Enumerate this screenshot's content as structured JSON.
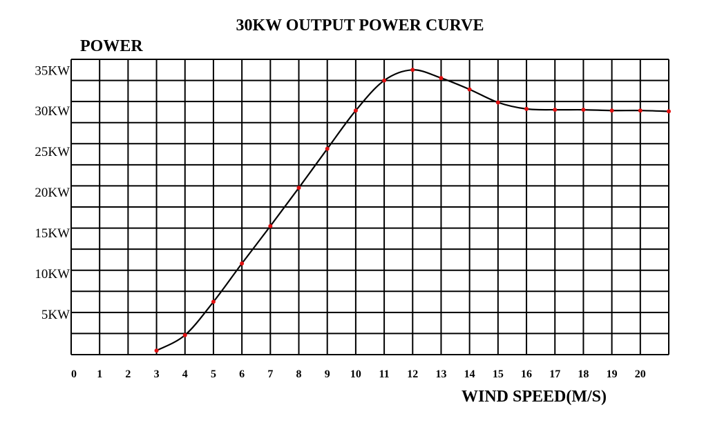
{
  "chart_data": {
    "type": "line",
    "title": "30KW OUTPUT  POWER CURVE",
    "ylabel": "POWER",
    "xlabel": "WIND SPEED(M/S)",
    "x_ticks": [
      "0",
      "1",
      "2",
      "3",
      "4",
      "5",
      "6",
      "7",
      "8",
      "9",
      "10",
      "11",
      "12",
      "13",
      "14",
      "15",
      "16",
      "17",
      "18",
      "19",
      "20"
    ],
    "y_ticks": [
      "5KW",
      "10KW",
      "15KW",
      "20KW",
      "25KW",
      "30KW",
      "35KW"
    ],
    "xlim": [
      0,
      21
    ],
    "ylim": [
      0,
      35
    ],
    "grid": true,
    "colors": {
      "line": "#000000",
      "markers": "#e01010",
      "grid": "#000000"
    },
    "series": [
      {
        "x": [
          3,
          4,
          5,
          6,
          7,
          8,
          9,
          10,
          11,
          12,
          13,
          14,
          15,
          16,
          17,
          18,
          19,
          20,
          21
        ],
        "values": [
          0.5,
          2.4,
          6.5,
          11.2,
          15.8,
          20.5,
          25.3,
          30.0,
          33.7,
          35.0,
          34.0,
          32.6,
          31.0,
          30.2,
          30.1,
          30.1,
          30.0,
          30.0,
          29.9
        ]
      }
    ]
  }
}
